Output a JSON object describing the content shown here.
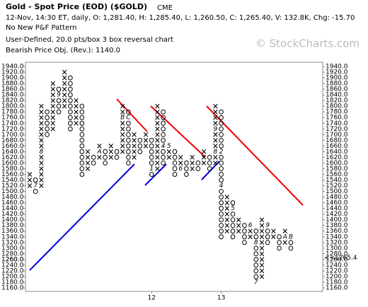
{
  "chart_data": {
    "type": "pnf",
    "title": "Gold - Spot Price (EOD) ($GOLD)",
    "exchange": "CME",
    "subtitle": "12-Nov, 14:30 ET, daily, O: 1,281.40, H: 1,285.40, L: 1,260.50, C: 1,265.40, V: 132.8K, Chg: -15.70",
    "pattern": "No New P&F Pattern",
    "method": "User-Defined, 20.0 pts/box 3 box reversal chart",
    "objective": "Bearish Price Obj. (Rev.): 1140.0",
    "watermark": "© StockCharts.com",
    "box_size": 20,
    "ylim": [
      1160,
      1940
    ],
    "yticks": [
      {
        "value": 1940,
        "label": "1940.0"
      },
      {
        "value": 1920,
        "label": "1920.0"
      },
      {
        "value": 1900,
        "label": "1900.0"
      },
      {
        "value": 1880,
        "label": "1880.0"
      },
      {
        "value": 1860,
        "label": "1860.0"
      },
      {
        "value": 1840,
        "label": "1840.0"
      },
      {
        "value": 1820,
        "label": "1820.0"
      },
      {
        "value": 1800,
        "label": "1800.0"
      },
      {
        "value": 1780,
        "label": "1780.0"
      },
      {
        "value": 1760,
        "label": "1760.0"
      },
      {
        "value": 1740,
        "label": "1740.0"
      },
      {
        "value": 1720,
        "label": "1720.0"
      },
      {
        "value": 1700,
        "label": "1700.0"
      },
      {
        "value": 1680,
        "label": "1680.0"
      },
      {
        "value": 1660,
        "label": "1660.0"
      },
      {
        "value": 1640,
        "label": "1640.0"
      },
      {
        "value": 1620,
        "label": "1620.0"
      },
      {
        "value": 1600,
        "label": "1600.0"
      },
      {
        "value": 1580,
        "label": "1580.0"
      },
      {
        "value": 1560,
        "label": "1560.0"
      },
      {
        "value": 1540,
        "label": "1540.0"
      },
      {
        "value": 1520,
        "label": "1520.0"
      },
      {
        "value": 1500,
        "label": "1500.0"
      },
      {
        "value": 1480,
        "label": "1480.0"
      },
      {
        "value": 1460,
        "label": "1460.0"
      },
      {
        "value": 1440,
        "label": "1440.0"
      },
      {
        "value": 1420,
        "label": "1420.0"
      },
      {
        "value": 1400,
        "label": "1400.0"
      },
      {
        "value": 1380,
        "label": "1380.0"
      },
      {
        "value": 1360,
        "label": "1360.0"
      },
      {
        "value": 1340,
        "label": "1340.0"
      },
      {
        "value": 1320,
        "label": "1320.0"
      },
      {
        "value": 1300,
        "label": "1300.0"
      },
      {
        "value": 1280,
        "label": "1280.0"
      },
      {
        "value": 1260,
        "label": "1260.0"
      },
      {
        "value": 1240,
        "label": "1240.0"
      },
      {
        "value": 1220,
        "label": "1220.0"
      },
      {
        "value": 1200,
        "label": "1200.0"
      },
      {
        "value": 1180,
        "label": "1180.0"
      },
      {
        "value": 1160,
        "label": "1160.0"
      }
    ],
    "columns": [
      {
        "kind": "X",
        "low": 1520,
        "high": 1560
      },
      {
        "kind": "O",
        "low": 1500,
        "high": 1540,
        "marks": [
          {
            "value": 1520,
            "label": "7"
          }
        ]
      },
      {
        "kind": "X",
        "low": 1520,
        "high": 1800,
        "marks": [
          {
            "value": 1640,
            "label": "8"
          }
        ]
      },
      {
        "kind": "O",
        "low": 1700,
        "high": 1780
      },
      {
        "kind": "X",
        "low": 1720,
        "high": 1880
      },
      {
        "kind": "O",
        "low": 1780,
        "high": 1860,
        "marks": [
          {
            "value": 1840,
            "label": "9"
          }
        ]
      },
      {
        "kind": "X",
        "low": 1800,
        "high": 1920
      },
      {
        "kind": "O",
        "low": 1720,
        "high": 1900
      },
      {
        "kind": "X",
        "low": 1740,
        "high": 1820
      },
      {
        "kind": "O",
        "low": 1560,
        "high": 1800
      },
      {
        "kind": "X",
        "low": 1580,
        "high": 1640
      },
      {
        "kind": "O",
        "low": 1600,
        "high": 1620
      },
      {
        "kind": "X",
        "low": 1620,
        "high": 1660,
        "marks": [
          {
            "value": 1640,
            "label": "A"
          }
        ]
      },
      {
        "kind": "O",
        "low": 1600,
        "high": 1640
      },
      {
        "kind": "X",
        "low": 1620,
        "high": 1660
      },
      {
        "kind": "O",
        "low": 1620,
        "high": 1640
      },
      {
        "kind": "X",
        "low": 1640,
        "high": 1800,
        "marks": [
          {
            "value": 1760,
            "label": "B"
          }
        ]
      },
      {
        "kind": "O",
        "low": 1600,
        "high": 1780,
        "marks": [
          {
            "value": 1760,
            "label": "C"
          }
        ]
      },
      {
        "kind": "X",
        "low": 1620,
        "high": 1700
      },
      {
        "kind": "O",
        "low": 1640,
        "high": 1680
      },
      {
        "kind": "X",
        "low": 1660,
        "high": 1700
      },
      {
        "kind": "O",
        "low": 1560,
        "high": 1680,
        "x_label": "12",
        "marks": [
          {
            "value": 1580,
            "label": "1"
          }
        ]
      },
      {
        "kind": "X",
        "low": 1580,
        "high": 1800
      },
      {
        "kind": "O",
        "low": 1600,
        "high": 1780,
        "marks": [
          {
            "value": 1660,
            "label": "4"
          }
        ]
      },
      {
        "kind": "X",
        "low": 1620,
        "high": 1660,
        "marks": [
          {
            "value": 1660,
            "label": "5"
          }
        ]
      },
      {
        "kind": "O",
        "low": 1560,
        "high": 1640
      },
      {
        "kind": "X",
        "low": 1580,
        "high": 1620,
        "marks": [
          {
            "value": 1580,
            "label": "6"
          }
        ]
      },
      {
        "kind": "O",
        "low": 1560,
        "high": 1600
      },
      {
        "kind": "X",
        "low": 1580,
        "high": 1620
      },
      {
        "kind": "O",
        "low": 1580,
        "high": 1600
      },
      {
        "kind": "X",
        "low": 1600,
        "high": 1640
      },
      {
        "kind": "O",
        "low": 1580,
        "high": 1620
      },
      {
        "kind": "X",
        "low": 1600,
        "high": 1800,
        "marks": [
          {
            "value": 1720,
            "label": "9"
          },
          {
            "value": 1640,
            "label": "8"
          }
        ]
      },
      {
        "kind": "O",
        "low": 1340,
        "high": 1780,
        "x_label": "13",
        "marks": [
          {
            "value": 1640,
            "label": "2"
          },
          {
            "value": 1520,
            "label": "4"
          }
        ]
      },
      {
        "kind": "X",
        "low": 1360,
        "high": 1480
      },
      {
        "kind": "O",
        "low": 1340,
        "high": 1460,
        "marks": [
          {
            "value": 1440,
            "label": "5"
          }
        ]
      },
      {
        "kind": "X",
        "low": 1360,
        "high": 1400
      },
      {
        "kind": "O",
        "low": 1320,
        "high": 1380
      },
      {
        "kind": "X",
        "low": 1340,
        "high": 1380,
        "marks": [
          {
            "value": 1380,
            "label": "6"
          }
        ]
      },
      {
        "kind": "O",
        "low": 1180,
        "high": 1360,
        "marks": [
          {
            "value": 1320,
            "label": "8"
          },
          {
            "value": 1180,
            "label": "7"
          }
        ]
      },
      {
        "kind": "X",
        "low": 1200,
        "high": 1400
      },
      {
        "kind": "O",
        "low": 1320,
        "high": 1380,
        "marks": [
          {
            "value": 1380,
            "label": "9"
          }
        ]
      },
      {
        "kind": "X",
        "low": 1340,
        "high": 1360
      },
      {
        "kind": "O",
        "low": 1300,
        "high": 1340
      },
      {
        "kind": "X",
        "low": 1320,
        "high": 1360,
        "marks": [
          {
            "value": 1340,
            "label": "A"
          }
        ]
      },
      {
        "kind": "O",
        "low": 1300,
        "high": 1340,
        "marks": [
          {
            "value": 1340,
            "label": "B"
          }
        ]
      }
    ],
    "last_box": {
      "value": 1260,
      "label": "1260.0"
    },
    "last_close": {
      "value": 1265.4,
      "label": "<<1265.4"
    },
    "x_color": "#000000",
    "o_color": "#000000",
    "mark_color": "#c00000"
  }
}
